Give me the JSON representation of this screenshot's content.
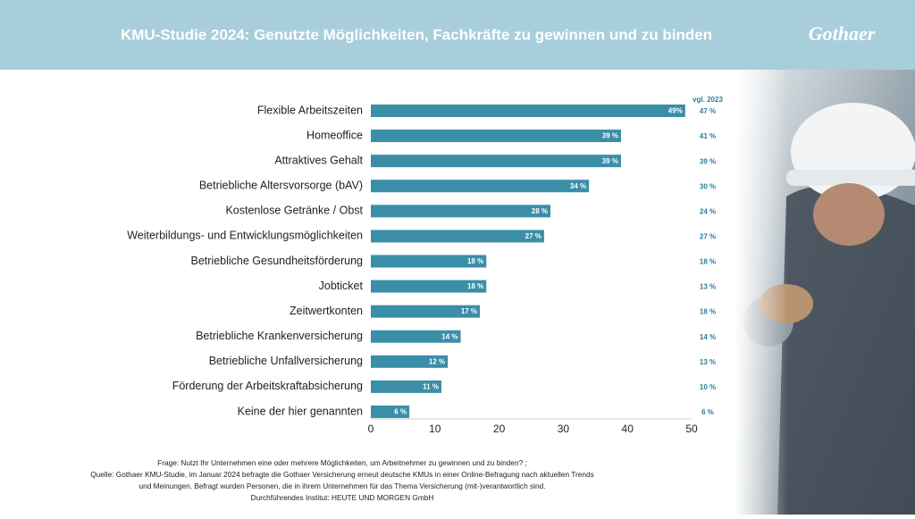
{
  "header": {
    "title": "KMU-Studie 2024: Genutzte Möglichkeiten, Fachkräfte zu gewinnen und zu binden",
    "logo": "Gothaer"
  },
  "chart_data": {
    "type": "bar",
    "orientation": "horizontal",
    "categories": [
      "Flexible Arbeitszeiten",
      "Homeoffice",
      "Attraktives Gehalt",
      "Betriebliche Altersvorsorge (bAV)",
      "Kostenlose Getränke / Obst",
      "Weiterbildungs- und Entwicklungsmöglichkeiten",
      "Betriebliche Gesundheitsförderung",
      "Jobticket",
      "Zeitwertkonten",
      "Betriebliche Krankenversicherung",
      "Betriebliche Unfallversicherung",
      "Förderung der Arbeitskraftabsicherung",
      "Keine der hier genannten"
    ],
    "values": [
      49,
      39,
      39,
      34,
      28,
      27,
      18,
      18,
      17,
      14,
      12,
      11,
      6
    ],
    "value_labels": [
      "49%",
      "39 %",
      "39 %",
      "34 %",
      "28 %",
      "27 %",
      "18 %",
      "18 %",
      "17 %",
      "14 %",
      "12 %",
      "11 %",
      "6 %"
    ],
    "color": "#3b8ea8",
    "xlim": [
      0,
      50
    ],
    "xticks": [
      0,
      10,
      20,
      30,
      40,
      50
    ],
    "comparison": {
      "title": "vgl. 2023",
      "values": [
        47,
        41,
        39,
        30,
        24,
        27,
        18,
        13,
        18,
        14,
        13,
        10,
        6
      ],
      "value_labels": [
        "47 %",
        "41 %",
        "39 %",
        "30 %",
        "24 %",
        "27 %",
        "18 %",
        "13 %",
        "18 %",
        "14 %",
        "13 %",
        "10 %",
        "6 %"
      ],
      "color": "#2a7d9e"
    }
  },
  "footer": {
    "lines": [
      "Frage: Nutzt Ihr Unternehmen eine oder mehrere Möglichkeiten, um Arbeitnehmer zu gewinnen und zu binden? ;",
      "Quelle: Gothaer KMU-Studie, im Januar 2024 befragte die Gothaer Versicherung erneut deutsche KMUs in einer Online-Befragung nach aktuellen Trends",
      "und Meinungen. Befragt wurden Personen, die in ihrem Unternehmen für das Thema Versicherung (mit-)verantwortlich sind.",
      "Durchführendes Institut: HEUTE UND MORGEN GmbH"
    ]
  }
}
